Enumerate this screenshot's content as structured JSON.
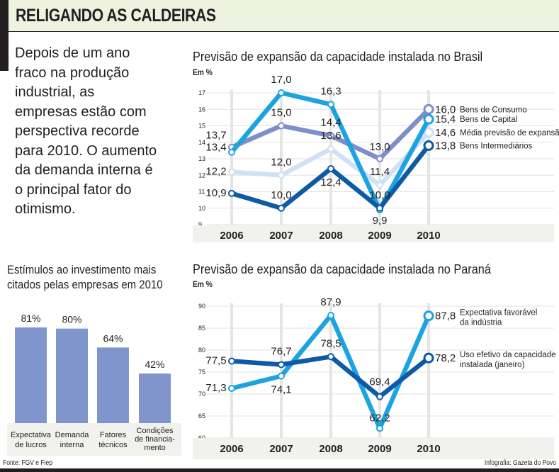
{
  "header": {
    "title": "RELIGANDO AS CALDEIRAS"
  },
  "intro": {
    "lines": [
      "Depois de um ano",
      "fraco na produção",
      "industrial, as",
      "empresas estão com",
      "perspectiva recorde",
      "para 2010. O aumento",
      "da demanda interna é",
      "o principal fator do",
      "otimismo."
    ]
  },
  "colors": {
    "header_bg": "#eef3e0",
    "bens_consumo": "#7d8fc8",
    "bens_capital": "#1ca3e0",
    "media": "#cfe1f4",
    "bens_intermediarios": "#0e5aa7",
    "expectativa": "#1ca3e0",
    "uso_efetivo": "#0e5aa7",
    "bar": "#7f95cc",
    "axis_band": "#f1f1ee",
    "grid": "#e2e2e2"
  },
  "footer": {
    "source": "Fonte: FGV e Fiep",
    "credit": "Infografia: Gazeta do Povo"
  },
  "chart_data": [
    {
      "id": "brasil",
      "type": "line",
      "title": "Previsão de expansão da capacidade instalada no Brasil",
      "ylabel": "Em %",
      "xlabel": "",
      "x": [
        "2006",
        "2007",
        "2008",
        "2009",
        "2010"
      ],
      "ylim": [
        9,
        17
      ],
      "yticks": [
        9,
        10,
        11,
        12,
        13,
        14,
        15,
        16,
        17
      ],
      "grid": true,
      "legend": "right",
      "series": [
        {
          "key": "bens_consumo",
          "name": "Bens de Consumo",
          "values": [
            13.7,
            15.0,
            14.4,
            13.0,
            16.0
          ],
          "labels": [
            "13,7",
            "15,0",
            "14,4",
            "13,0",
            "16,0"
          ]
        },
        {
          "key": "bens_capital",
          "name": "Bens de Capital",
          "values": [
            13.4,
            17.0,
            16.3,
            9.9,
            15.4
          ],
          "labels": [
            "13,4",
            "17,0",
            "16,3",
            "9,9",
            "15,4"
          ]
        },
        {
          "key": "media",
          "name": "Média previsão de expansão",
          "values": [
            12.2,
            12.0,
            13.6,
            11.4,
            14.6
          ],
          "labels": [
            "12,2",
            "12,0",
            "13,6",
            "11,4",
            "14,6"
          ]
        },
        {
          "key": "bens_intermediarios",
          "name": "Bens Intermediários",
          "values": [
            10.9,
            10.0,
            12.4,
            10.0,
            13.8
          ],
          "labels": [
            "10,9",
            "10,0",
            "12,4",
            "10,0",
            "13,8"
          ]
        }
      ]
    },
    {
      "id": "parana",
      "type": "line",
      "title": "Previsão de expansão da capacidade instalada no Paraná",
      "ylabel": "Em %",
      "xlabel": "",
      "x": [
        "2006",
        "2007",
        "2008",
        "2009",
        "2010"
      ],
      "ylim": [
        60,
        90
      ],
      "yticks": [
        60,
        65,
        70,
        75,
        80,
        85,
        90
      ],
      "grid": true,
      "legend": "right",
      "series": [
        {
          "key": "expectativa",
          "name": "Expectativa favorável da indústria",
          "name_lines": [
            "Expectativa favorável",
            "da indústria"
          ],
          "values": [
            71.3,
            74.1,
            87.9,
            62.2,
            87.8
          ],
          "labels": [
            "71,3",
            "74,1",
            "87,9",
            "62,2",
            "87,8"
          ]
        },
        {
          "key": "uso_efetivo",
          "name": "Uso efetivo da capacidade instalada (janeiro)",
          "name_lines": [
            "Uso efetivo da capacidade",
            "instalada (janeiro)"
          ],
          "values": [
            77.5,
            76.7,
            78.5,
            69.4,
            78.2
          ],
          "labels": [
            "77,5",
            "76,7",
            "78,5",
            "69,4",
            "78,2"
          ]
        }
      ]
    },
    {
      "id": "estimulos",
      "type": "bar",
      "title": "Estímulos ao investimento mais citados pelas empresas em 2010",
      "title_lines": [
        "Estímulos ao investimento mais",
        "citados pelas empresas em 2010"
      ],
      "xlabel": "",
      "ylabel": "",
      "ylim": [
        0,
        100
      ],
      "grid": false,
      "categories": [
        "Expectativa de lucros",
        "Demanda interna",
        "Fatores técnicos",
        "Condições de financiamento"
      ],
      "category_lines": [
        [
          "Expectativa",
          "de lucros"
        ],
        [
          "Demanda",
          "interna"
        ],
        [
          "Fatores",
          "técnicos"
        ],
        [
          "Condições",
          "de financia-",
          "mento"
        ]
      ],
      "values": [
        81,
        80,
        64,
        42
      ],
      "labels": [
        "81%",
        "80%",
        "64%",
        "42%"
      ]
    }
  ]
}
